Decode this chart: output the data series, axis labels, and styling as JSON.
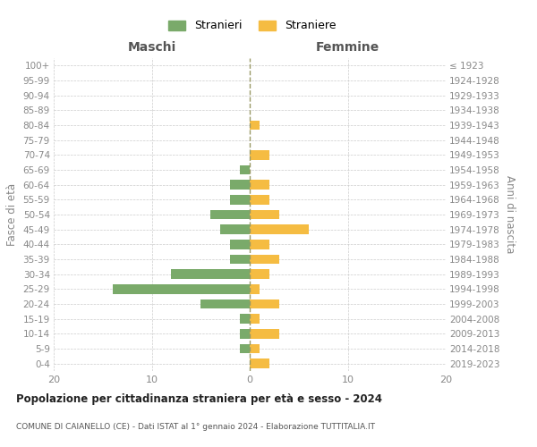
{
  "age_groups": [
    "100+",
    "95-99",
    "90-94",
    "85-89",
    "80-84",
    "75-79",
    "70-74",
    "65-69",
    "60-64",
    "55-59",
    "50-54",
    "45-49",
    "40-44",
    "35-39",
    "30-34",
    "25-29",
    "20-24",
    "15-19",
    "10-14",
    "5-9",
    "0-4"
  ],
  "birth_years": [
    "≤ 1923",
    "1924-1928",
    "1929-1933",
    "1934-1938",
    "1939-1943",
    "1944-1948",
    "1949-1953",
    "1954-1958",
    "1959-1963",
    "1964-1968",
    "1969-1973",
    "1974-1978",
    "1979-1983",
    "1984-1988",
    "1989-1993",
    "1994-1998",
    "1999-2003",
    "2004-2008",
    "2009-2013",
    "2014-2018",
    "2019-2023"
  ],
  "maschi": [
    0,
    0,
    0,
    0,
    0,
    0,
    0,
    1,
    2,
    2,
    4,
    3,
    2,
    2,
    8,
    14,
    5,
    1,
    1,
    1,
    0
  ],
  "femmine": [
    0,
    0,
    0,
    0,
    1,
    0,
    2,
    0,
    2,
    2,
    3,
    6,
    2,
    3,
    2,
    1,
    3,
    1,
    3,
    1,
    2
  ],
  "color_maschi": "#7aaa6a",
  "color_femmine": "#f5bc42",
  "title": "Popolazione per cittadinanza straniera per età e sesso - 2024",
  "subtitle": "COMUNE DI CAIANELLO (CE) - Dati ISTAT al 1° gennaio 2024 - Elaborazione TUTTITALIA.IT",
  "ylabel_left": "Fasce di età",
  "ylabel_right": "Anni di nascita",
  "xlabel_left": "Maschi",
  "xlabel_right": "Femmine",
  "legend_maschi": "Stranieri",
  "legend_femmine": "Straniere",
  "xlim": 20,
  "background_color": "#ffffff",
  "grid_color": "#cccccc"
}
